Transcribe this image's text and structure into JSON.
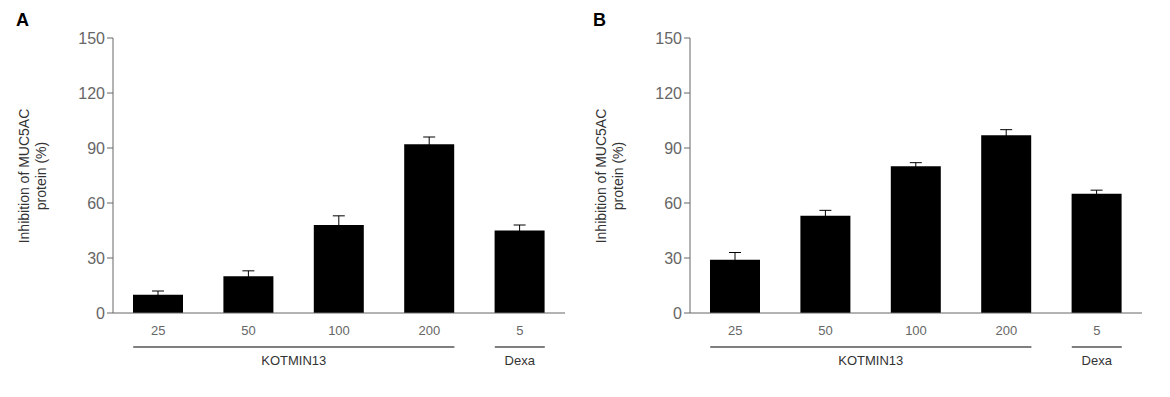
{
  "chart_data": [
    {
      "type": "bar",
      "title": "A",
      "ylabel": "Inhibition of MUC5AC\nprotein (%)",
      "categories": [
        "25",
        "50",
        "100",
        "200",
        "5"
      ],
      "values": [
        10,
        20,
        48,
        92,
        45
      ],
      "errors": [
        2,
        3,
        5,
        4,
        3
      ],
      "color": "#000000",
      "ylim": [
        0,
        150
      ],
      "yticks": [
        0,
        30,
        60,
        90,
        120,
        150
      ],
      "grid": false,
      "annotations": [
        {
          "text": "KOTMIN13",
          "categories": [
            "25",
            "50",
            "100",
            "200"
          ]
        },
        {
          "text": "Dexa",
          "categories": [
            "5"
          ]
        }
      ]
    },
    {
      "type": "bar",
      "title": "B",
      "ylabel": "Inhibition of MUC5AC\nprotein (%)",
      "categories": [
        "25",
        "50",
        "100",
        "200",
        "5"
      ],
      "values": [
        29,
        53,
        80,
        97,
        65
      ],
      "errors": [
        4,
        3,
        2,
        3,
        2
      ],
      "color": "#000000",
      "ylim": [
        0,
        150
      ],
      "yticks": [
        0,
        30,
        60,
        90,
        120,
        150
      ],
      "grid": false,
      "annotations": [
        {
          "text": "KOTMIN13",
          "categories": [
            "25",
            "50",
            "100",
            "200"
          ]
        },
        {
          "text": "Dexa",
          "categories": [
            "5"
          ]
        }
      ]
    }
  ]
}
